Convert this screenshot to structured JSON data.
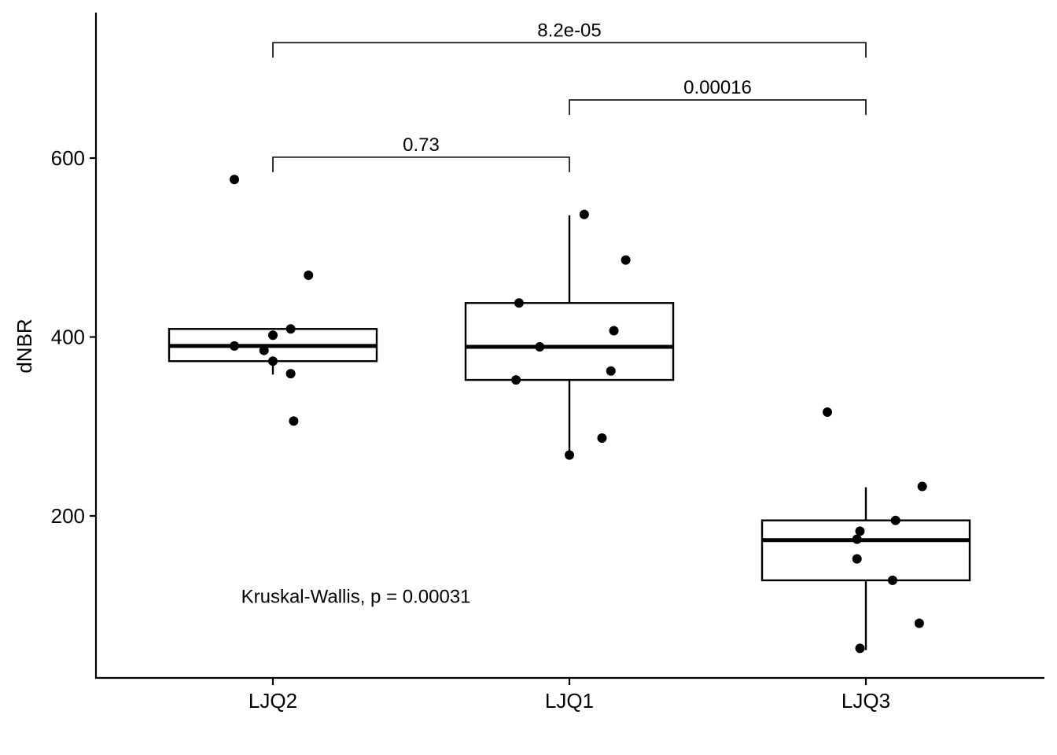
{
  "chart_data": {
    "type": "box",
    "ylabel": "dNBR",
    "xlabel": "",
    "ylim": [
      20,
      760
    ],
    "yticks": [
      200,
      400,
      600
    ],
    "categories": [
      "LJQ2",
      "LJQ1",
      "LJQ3"
    ],
    "boxes": [
      {
        "category": "LJQ2",
        "whisker_low": 358,
        "q1": 373,
        "median": 390,
        "q3": 409,
        "whisker_high": 409
      },
      {
        "category": "LJQ1",
        "whisker_low": 272,
        "q1": 352,
        "median": 389,
        "q3": 438,
        "whisker_high": 536
      },
      {
        "category": "LJQ3",
        "whisker_low": 50,
        "q1": 128,
        "median": 173,
        "q3": 195,
        "whisker_high": 232
      }
    ],
    "points": [
      {
        "category": "LJQ2",
        "jitter": -0.13,
        "y": 576
      },
      {
        "category": "LJQ2",
        "jitter": 0.12,
        "y": 469
      },
      {
        "category": "LJQ2",
        "jitter": 0.06,
        "y": 409
      },
      {
        "category": "LJQ2",
        "jitter": 0.0,
        "y": 402
      },
      {
        "category": "LJQ2",
        "jitter": -0.13,
        "y": 390
      },
      {
        "category": "LJQ2",
        "jitter": -0.03,
        "y": 385
      },
      {
        "category": "LJQ2",
        "jitter": 0.0,
        "y": 373
      },
      {
        "category": "LJQ2",
        "jitter": 0.06,
        "y": 359
      },
      {
        "category": "LJQ2",
        "jitter": 0.07,
        "y": 306
      },
      {
        "category": "LJQ1",
        "jitter": 0.05,
        "y": 537
      },
      {
        "category": "LJQ1",
        "jitter": 0.19,
        "y": 486
      },
      {
        "category": "LJQ1",
        "jitter": -0.17,
        "y": 438
      },
      {
        "category": "LJQ1",
        "jitter": 0.15,
        "y": 407
      },
      {
        "category": "LJQ1",
        "jitter": -0.1,
        "y": 389
      },
      {
        "category": "LJQ1",
        "jitter": 0.14,
        "y": 362
      },
      {
        "category": "LJQ1",
        "jitter": -0.18,
        "y": 352
      },
      {
        "category": "LJQ1",
        "jitter": 0.11,
        "y": 287
      },
      {
        "category": "LJQ1",
        "jitter": 0.0,
        "y": 268
      },
      {
        "category": "LJQ3",
        "jitter": -0.13,
        "y": 316
      },
      {
        "category": "LJQ3",
        "jitter": 0.19,
        "y": 233
      },
      {
        "category": "LJQ3",
        "jitter": 0.1,
        "y": 195
      },
      {
        "category": "LJQ3",
        "jitter": -0.02,
        "y": 183
      },
      {
        "category": "LJQ3",
        "jitter": -0.03,
        "y": 174
      },
      {
        "category": "LJQ3",
        "jitter": -0.03,
        "y": 152
      },
      {
        "category": "LJQ3",
        "jitter": 0.09,
        "y": 128
      },
      {
        "category": "LJQ3",
        "jitter": 0.18,
        "y": 80
      },
      {
        "category": "LJQ3",
        "jitter": -0.02,
        "y": 52
      }
    ],
    "comparisons": [
      {
        "from": "LJQ2",
        "to": "LJQ1",
        "y": 601,
        "label": "0.73"
      },
      {
        "from": "LJQ1",
        "to": "LJQ3",
        "y": 665,
        "label": "0.00016"
      },
      {
        "from": "LJQ2",
        "to": "LJQ3",
        "y": 729,
        "label": "8.2e-05"
      }
    ],
    "annotation": {
      "text": "Kruskal-Wallis, p = 0.00031",
      "x_category": "LJQ2",
      "x_offset": 0.28,
      "y": 110
    },
    "grid": false,
    "legend": "none"
  }
}
